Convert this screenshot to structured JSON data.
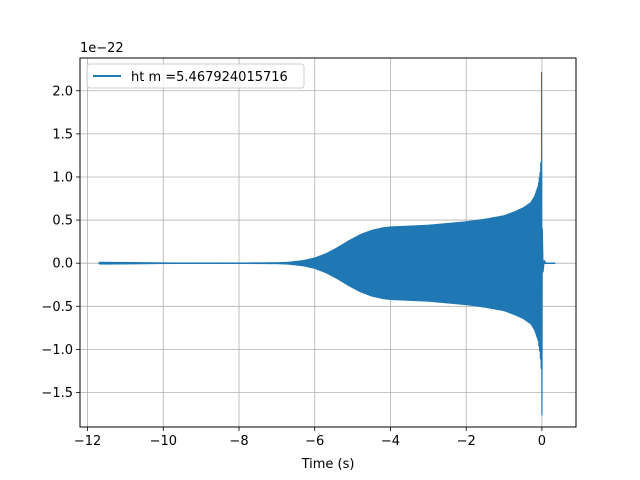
{
  "chart_data": {
    "type": "line",
    "xlabel": "Time (s)",
    "ylabel": "",
    "offset_text": "1e−22",
    "xlim": [
      -12.2,
      0.9
    ],
    "ylim": [
      -1.9,
      2.38
    ],
    "x_ticks": [
      -12,
      -10,
      -8,
      -6,
      -4,
      -2,
      0
    ],
    "x_tick_labels": [
      "−12",
      "−10",
      "−8",
      "−6",
      "−4",
      "−2",
      "0"
    ],
    "y_ticks": [
      -1.5,
      -1.0,
      -0.5,
      0.0,
      0.5,
      1.0,
      1.5,
      2.0
    ],
    "y_tick_labels": [
      "−1.5",
      "−1.0",
      "−0.5",
      "0.0",
      "0.5",
      "1.0",
      "1.5",
      "2.0"
    ],
    "grid": true,
    "legend_position": "upper-left",
    "series": [
      {
        "name": "ht m =5.467924015716",
        "color": "#1f77b4",
        "envelope_upper": {
          "x": [
            -11.7,
            -11.0,
            -10.0,
            -9.0,
            -8.0,
            -7.0,
            -6.7,
            -6.3,
            -6.0,
            -5.7,
            -5.4,
            -5.1,
            -4.8,
            -4.5,
            -4.2,
            -4.0,
            -3.5,
            -3.0,
            -2.5,
            -2.0,
            -1.5,
            -1.0,
            -0.7,
            -0.5,
            -0.3,
            -0.2,
            -0.1,
            -0.05,
            -0.02,
            -0.01
          ],
          "y": [
            0.01,
            0.008,
            0.003,
            0.002,
            0.002,
            0.005,
            0.01,
            0.03,
            0.06,
            0.11,
            0.18,
            0.26,
            0.33,
            0.38,
            0.41,
            0.42,
            0.43,
            0.44,
            0.46,
            0.48,
            0.51,
            0.55,
            0.6,
            0.64,
            0.7,
            0.77,
            0.9,
            1.05,
            1.22,
            1.3
          ]
        },
        "envelope_lower": {
          "x": [
            -11.7,
            -11.0,
            -10.0,
            -9.0,
            -8.0,
            -7.0,
            -6.7,
            -6.3,
            -6.0,
            -5.7,
            -5.4,
            -5.1,
            -4.8,
            -4.5,
            -4.2,
            -4.0,
            -3.5,
            -3.0,
            -2.5,
            -2.0,
            -1.5,
            -1.0,
            -0.7,
            -0.5,
            -0.3,
            -0.2,
            -0.1,
            -0.05,
            -0.02,
            -0.01
          ],
          "y": [
            -0.01,
            -0.008,
            -0.003,
            -0.002,
            -0.002,
            -0.005,
            -0.01,
            -0.03,
            -0.06,
            -0.11,
            -0.18,
            -0.26,
            -0.33,
            -0.38,
            -0.41,
            -0.42,
            -0.43,
            -0.44,
            -0.46,
            -0.48,
            -0.51,
            -0.55,
            -0.6,
            -0.64,
            -0.7,
            -0.77,
            -0.9,
            -1.05,
            -1.22,
            -1.3
          ]
        },
        "merger_peak": {
          "x": 0.0,
          "ymax": 2.21,
          "ymin": -1.76
        },
        "ringdown_end_x": 0.35
      }
    ]
  }
}
